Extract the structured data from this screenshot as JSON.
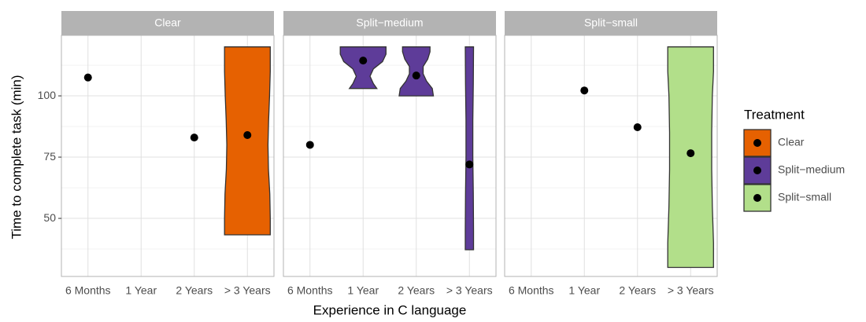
{
  "chart_data": {
    "type": "violin",
    "x_label": "Experience in C language",
    "y_label": "Time to complete task (min)",
    "legend_title": "Treatment",
    "categories": [
      "6 Months",
      "1 Year",
      "2 Years",
      "> 3 Years"
    ],
    "ylim": [
      26.3,
      124.7
    ],
    "yticks": [
      50,
      75,
      100
    ],
    "yminorticks": [
      37.5,
      62.5,
      87.5,
      112.5
    ],
    "grid": true,
    "series": [
      {
        "name": "Clear",
        "color": "#e66101",
        "points": [
          107.5,
          null,
          83,
          84
        ],
        "violins": [
          null,
          null,
          null,
          {
            "y": [
              43.3,
              50,
              60,
              70,
              80,
              90,
              100,
              110,
              120
            ],
            "density": [
              1,
              1,
              0.98,
              0.92,
              0.9,
              0.93,
              0.97,
              1,
              1
            ]
          }
        ]
      },
      {
        "name": "Split−medium",
        "color": "#5e3c99",
        "points": [
          80,
          114.4,
          108.3,
          72
        ],
        "violins": [
          null,
          {
            "y": [
              103,
              105,
              108,
              111,
              114,
              117,
              120
            ],
            "density": [
              0.6,
              0.45,
              0.3,
              0.45,
              0.85,
              1,
              1
            ]
          },
          {
            "y": [
              100,
              103,
              106,
              109,
              112,
              115,
              118,
              120
            ],
            "density": [
              0.75,
              0.7,
              0.45,
              0.3,
              0.3,
              0.5,
              0.6,
              0.6
            ]
          },
          {
            "y": [
              37.2,
              45,
              60,
              75,
              90,
              105,
              120
            ],
            "density": [
              0.18,
              0.18,
              0.17,
              0.15,
              0.15,
              0.17,
              0.18
            ]
          }
        ]
      },
      {
        "name": "Split−small",
        "color": "#b2df8a",
        "points": [
          null,
          102.2,
          87.2,
          76.6
        ],
        "violins": [
          null,
          null,
          null,
          {
            "y": [
              30,
              40,
              55,
              70,
              85,
              100,
              110,
              120
            ],
            "density": [
              1,
              1,
              0.95,
              0.92,
              0.92,
              0.95,
              1,
              1
            ]
          }
        ]
      }
    ]
  }
}
